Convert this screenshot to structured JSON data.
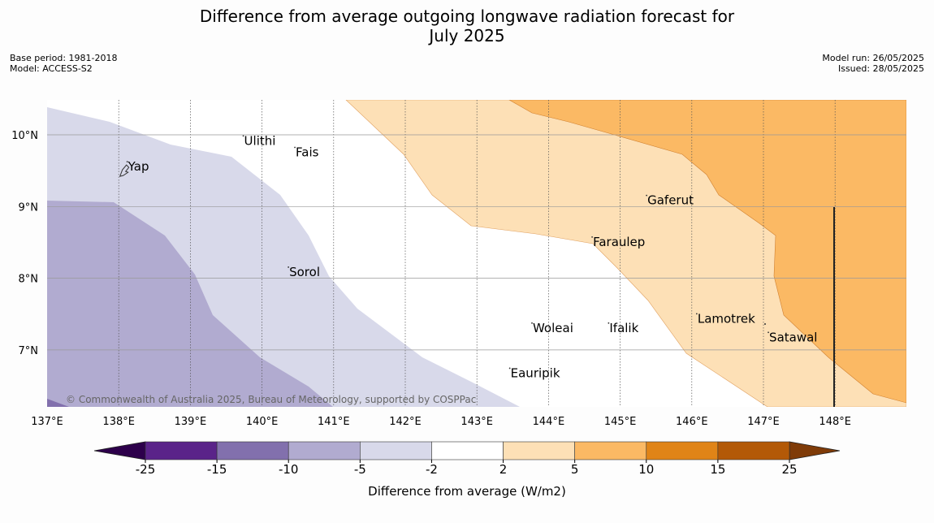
{
  "title_line1": "Difference from average outgoing longwave radiation forecast for",
  "title_line2": "July 2025",
  "meta_left": {
    "base_period": "Base period: 1981-2018",
    "model": "Model: ACCESS-S2"
  },
  "meta_right": {
    "model_run": "Model run: 26/05/2025",
    "issued": "Issued: 28/05/2025"
  },
  "copyright": "© Commonwealth of Australia 2025, Bureau of Meteorology, supported by COSPPac",
  "lon_ticks": [
    "137°E",
    "138°E",
    "139°E",
    "140°E",
    "141°E",
    "142°E",
    "143°E",
    "144°E",
    "145°E",
    "146°E",
    "147°E",
    "148°E"
  ],
  "lat_ticks": [
    "10°N",
    "9°N",
    "8°N",
    "7°N"
  ],
  "places": [
    {
      "name": "Ulithi",
      "lon": 139.75,
      "lat": 9.86
    },
    {
      "name": "Fais",
      "lon": 140.47,
      "lat": 9.7
    },
    {
      "name": "Yap",
      "lon": 138.13,
      "lat": 9.5
    },
    {
      "name": "Gaferut",
      "lon": 145.38,
      "lat": 9.03
    },
    {
      "name": "Faraulep",
      "lon": 144.62,
      "lat": 8.45
    },
    {
      "name": "Sorol",
      "lon": 140.38,
      "lat": 8.03
    },
    {
      "name": "Lamotrek",
      "lon": 146.08,
      "lat": 7.38
    },
    {
      "name": "Woleai",
      "lon": 143.78,
      "lat": 7.25
    },
    {
      "name": "Ifalik",
      "lon": 144.85,
      "lat": 7.25
    },
    {
      "name": "Satawal",
      "lon": 147.08,
      "lat": 7.12
    },
    {
      "name": "Eauripik",
      "lon": 143.47,
      "lat": 6.62
    }
  ],
  "colorbar": {
    "label": "Difference from average (W/m2)",
    "ticks": [
      "-25",
      "-15",
      "-10",
      "-5",
      "-2",
      "2",
      "5",
      "10",
      "15",
      "25"
    ],
    "colors": [
      "#5a2389",
      "#8270ad",
      "#b1abd0",
      "#d8d9ea",
      "#ffffff",
      "#fde0b6",
      "#fbb964",
      "#e08417",
      "#b35907"
    ],
    "under_color": "#2d004b",
    "over_color": "#7f3b08"
  },
  "fills": {
    "light_purple": "#d8d9ea",
    "mid_purple": "#b1abd0",
    "dark_purple": "#8270ad",
    "light_orange": "#fde0b6",
    "mid_orange": "#fbb964"
  }
}
